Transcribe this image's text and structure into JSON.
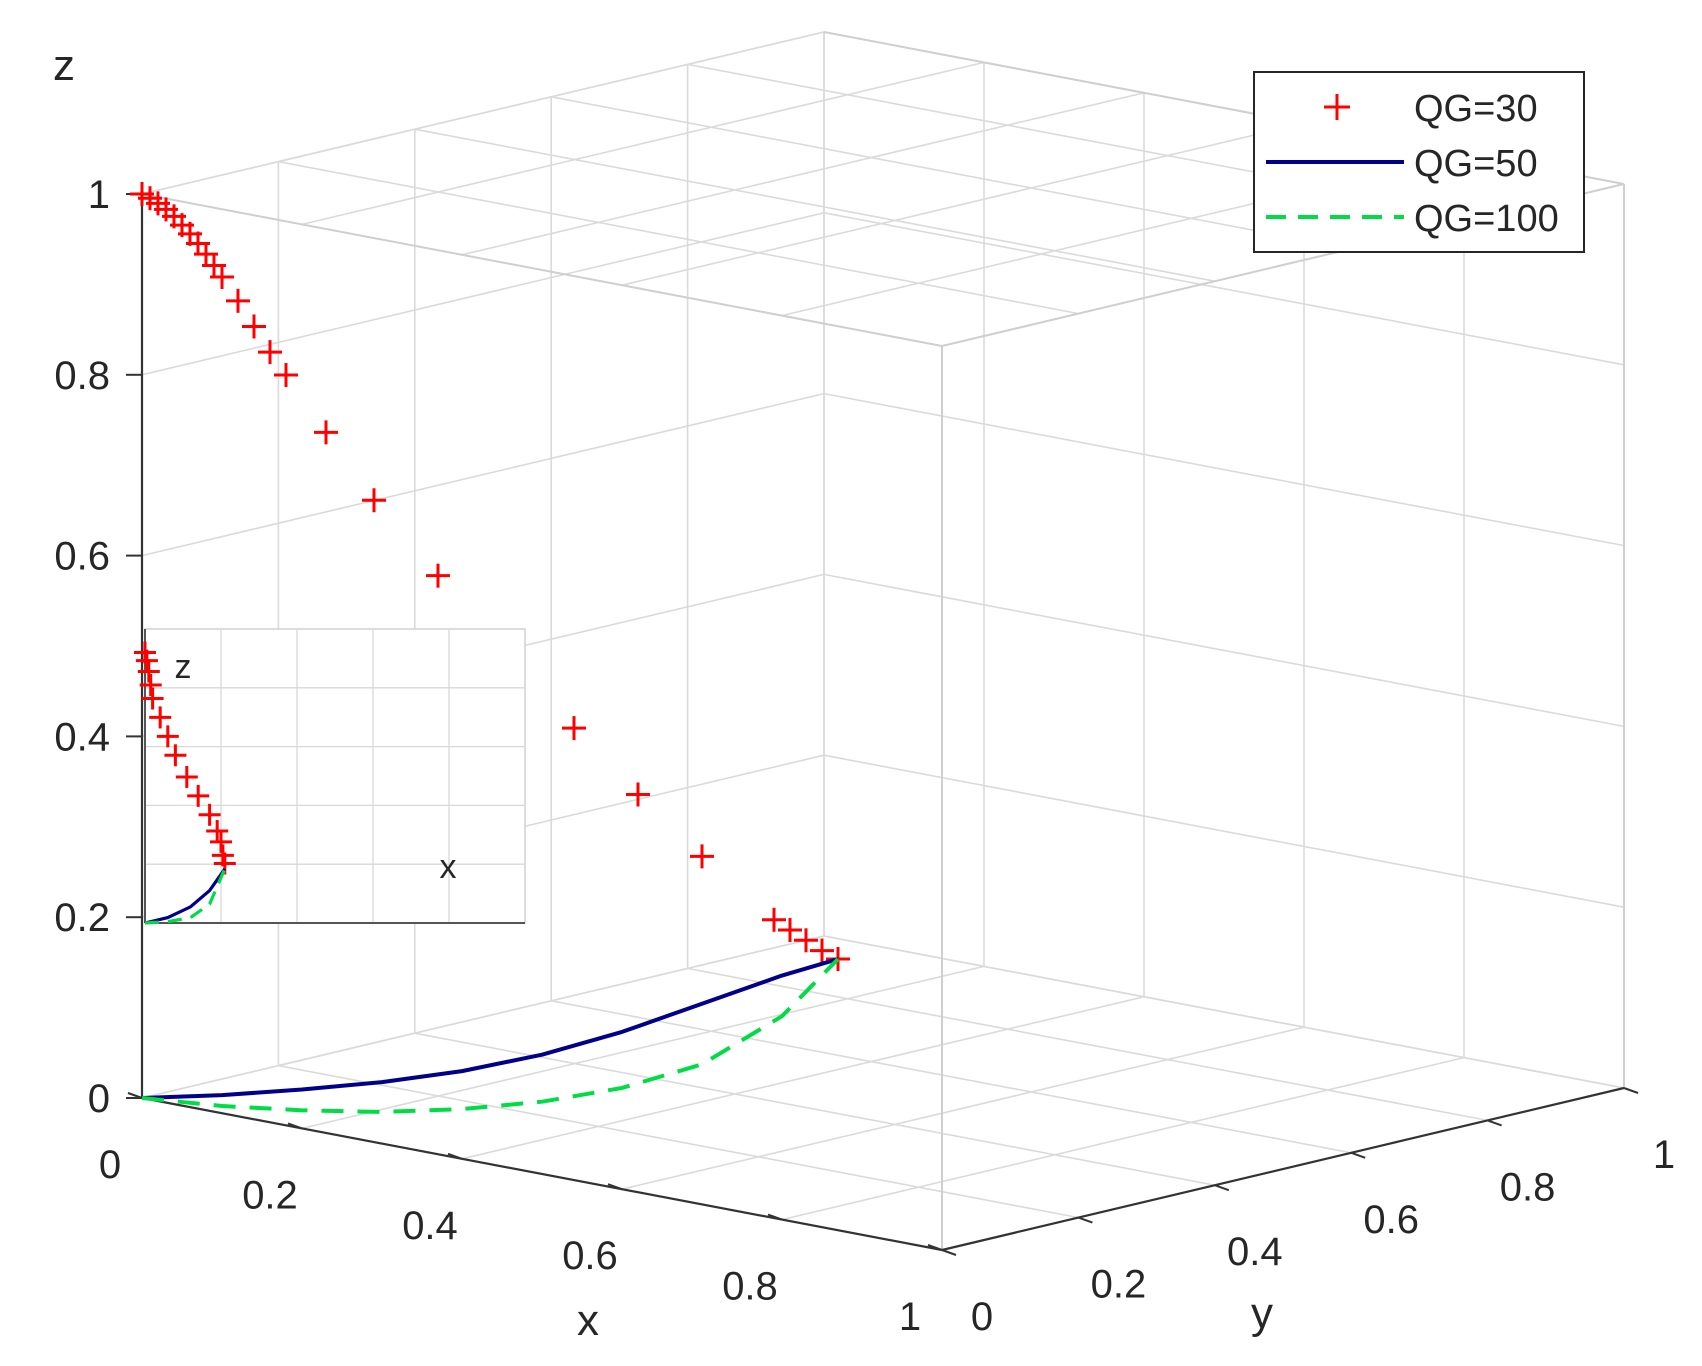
{
  "chart_data": {
    "type": "line",
    "projection": "3d",
    "title": "",
    "xlabel": "x",
    "ylabel": "y",
    "zlabel": "z",
    "xlim": [
      0,
      1
    ],
    "ylim": [
      0,
      1
    ],
    "zlim": [
      0,
      1
    ],
    "xticks": [
      "0",
      "0.2",
      "0.4",
      "0.6",
      "0.8",
      "1"
    ],
    "yticks": [
      "0",
      "0.2",
      "0.4",
      "0.6",
      "0.8",
      "1"
    ],
    "zticks": [
      "0",
      "0.2",
      "0.4",
      "0.6",
      "0.8",
      "1"
    ],
    "grid": true,
    "legend_position": "top-right",
    "series": [
      {
        "name": "QG=30",
        "style": "markers-plus",
        "color": "#ff0000",
        "points": [
          [
            0,
            0,
            1.0
          ],
          [
            0.01,
            0,
            0.997
          ],
          [
            0.02,
            0,
            0.993
          ],
          [
            0.03,
            0,
            0.988
          ],
          [
            0.04,
            0,
            0.982
          ],
          [
            0.05,
            0,
            0.974
          ],
          [
            0.06,
            0,
            0.966
          ],
          [
            0.07,
            0,
            0.957
          ],
          [
            0.08,
            0,
            0.947
          ],
          [
            0.09,
            0,
            0.936
          ],
          [
            0.1,
            0,
            0.925
          ],
          [
            0.12,
            0,
            0.902
          ],
          [
            0.14,
            0,
            0.877
          ],
          [
            0.16,
            0,
            0.852
          ],
          [
            0.18,
            0,
            0.83
          ],
          [
            0.23,
            0,
            0.775
          ],
          [
            0.29,
            0,
            0.71
          ],
          [
            0.37,
            0,
            0.64
          ],
          [
            0.46,
            0,
            0.565
          ],
          [
            0.54,
            0,
            0.5
          ],
          [
            0.62,
            0,
            0.44
          ],
          [
            0.7,
            0,
            0.385
          ],
          [
            0.79,
            0,
            0.33
          ],
          [
            0.81,
            0,
            0.322
          ],
          [
            0.83,
            0,
            0.314
          ],
          [
            0.85,
            0,
            0.306
          ],
          [
            0.87,
            0,
            0.3
          ]
        ]
      },
      {
        "name": "QG=50",
        "style": "solid",
        "color": "#00008b",
        "points": [
          [
            0,
            0,
            0
          ],
          [
            0.1,
            0,
            0.02
          ],
          [
            0.2,
            0,
            0.043
          ],
          [
            0.3,
            0,
            0.068
          ],
          [
            0.4,
            0,
            0.097
          ],
          [
            0.5,
            0,
            0.132
          ],
          [
            0.6,
            0,
            0.174
          ],
          [
            0.7,
            0,
            0.222
          ],
          [
            0.8,
            0,
            0.27
          ],
          [
            0.87,
            0,
            0.3
          ]
        ]
      },
      {
        "name": "QG=100",
        "style": "dashed",
        "color": "#00dd44",
        "points": [
          [
            0,
            0,
            0
          ],
          [
            0.1,
            0,
            0.008
          ],
          [
            0.2,
            0,
            0.02
          ],
          [
            0.3,
            0,
            0.035
          ],
          [
            0.4,
            0,
            0.055
          ],
          [
            0.5,
            0,
            0.08
          ],
          [
            0.6,
            0,
            0.112
          ],
          [
            0.7,
            0,
            0.155
          ],
          [
            0.8,
            0,
            0.225
          ],
          [
            0.87,
            0,
            0.3
          ]
        ]
      }
    ],
    "inset": {
      "xlabel": "x",
      "zlabel": "z",
      "grid": true,
      "series": [
        {
          "name": "QG=30",
          "style": "markers-plus",
          "color": "#ff0000",
          "points": [
            [
              0.0,
              1.0
            ],
            [
              0.005,
              0.97
            ],
            [
              0.01,
              0.93
            ],
            [
              0.015,
              0.88
            ],
            [
              0.02,
              0.83
            ],
            [
              0.04,
              0.76
            ],
            [
              0.06,
              0.69
            ],
            [
              0.08,
              0.62
            ],
            [
              0.11,
              0.54
            ],
            [
              0.14,
              0.47
            ],
            [
              0.17,
              0.4
            ],
            [
              0.19,
              0.34
            ],
            [
              0.2,
              0.3
            ],
            [
              0.205,
              0.25
            ],
            [
              0.21,
              0.22
            ]
          ]
        },
        {
          "name": "QG=50",
          "style": "solid",
          "color": "#00008b",
          "points": [
            [
              0.0,
              0.0
            ],
            [
              0.06,
              0.02
            ],
            [
              0.12,
              0.06
            ],
            [
              0.17,
              0.12
            ],
            [
              0.21,
              0.2
            ]
          ]
        },
        {
          "name": "QG=100",
          "style": "dashed",
          "color": "#00dd44",
          "points": [
            [
              0.0,
              0.0
            ],
            [
              0.06,
              0.005
            ],
            [
              0.12,
              0.02
            ],
            [
              0.17,
              0.07
            ],
            [
              0.21,
              0.2
            ]
          ]
        }
      ]
    }
  }
}
